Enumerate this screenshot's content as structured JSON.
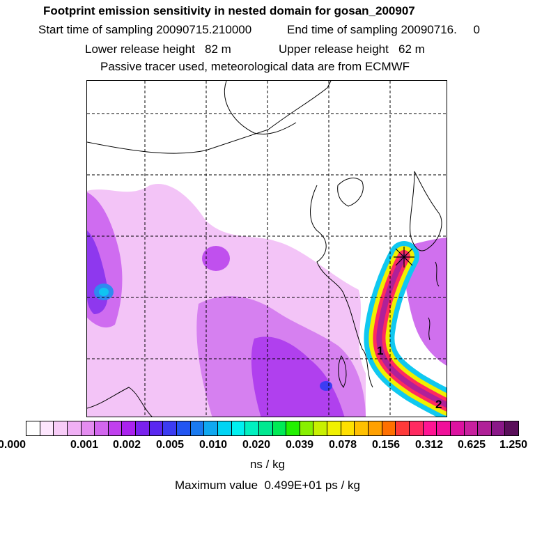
{
  "header": {
    "title": "Footprint emission sensitivity in nested domain for gosan_200907",
    "start_label": "Start time of sampling 20090715.210000",
    "end_label": "End time of sampling 20090716.     0",
    "lower_label": "Lower release height   82 m",
    "upper_label": "Upper release height   62 m",
    "tracer_label": "Passive tracer used, meteorological data are from ECMWF"
  },
  "map": {
    "markers": [
      {
        "label": "1"
      },
      {
        "label": "2"
      }
    ],
    "release_site_symbol": "star-marker-icon"
  },
  "colorbar": {
    "colors": [
      "#ffffff",
      "#fde6fd",
      "#f7ccf7",
      "#f0b0f5",
      "#e48cf0",
      "#d266ee",
      "#c040ee",
      "#aa22ee",
      "#7a22ee",
      "#5a28f0",
      "#3c3cf2",
      "#2255f2",
      "#1a7af0",
      "#10a8f0",
      "#00d4f4",
      "#00f0f0",
      "#00f0c0",
      "#00e890",
      "#00ea55",
      "#22f000",
      "#88f000",
      "#c8f000",
      "#f0f000",
      "#ffe000",
      "#ffc000",
      "#ffa000",
      "#ff7000",
      "#ff3a3a",
      "#ff2a60",
      "#ff1493",
      "#f0109a",
      "#dc12a0",
      "#c8209e",
      "#b02098",
      "#8a1888",
      "#5a0e5a"
    ],
    "tick_labels": [
      "0.000",
      "0.001",
      "0.002",
      "0.005",
      "0.010",
      "0.020",
      "0.039",
      "0.078",
      "0.156",
      "0.312",
      "0.625",
      "1.250"
    ],
    "units": "ns / kg"
  },
  "footer": {
    "max_value": "Maximum value  0.499E+01 ps / kg"
  }
}
